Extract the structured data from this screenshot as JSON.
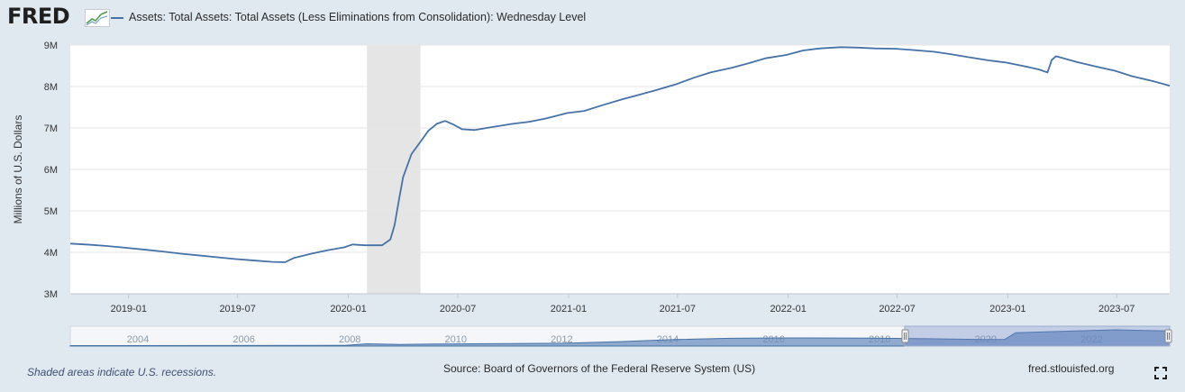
{
  "header": {
    "logo_text": "FRED",
    "series_title": "Assets: Total Assets: Total Assets (Less Eliminations from Consolidation): Wednesday Level"
  },
  "colors": {
    "background": "#e1e9f0",
    "plot_background": "#ffffff",
    "series_line": "#4572a7",
    "recession_shade": "#e5e5e5",
    "navigator_fill": "#6f8fbf",
    "logo_dark": "#1f1f1f",
    "logo_accent": "#4f9d4f"
  },
  "chart_data": {
    "type": "line",
    "title": "",
    "xlabel": "",
    "ylabel": "Millions of U.S. Dollars",
    "ylim": [
      3000000,
      9000000
    ],
    "yticks": [
      {
        "value": 3000000,
        "label": "3M"
      },
      {
        "value": 4000000,
        "label": "4M"
      },
      {
        "value": 5000000,
        "label": "5M"
      },
      {
        "value": 6000000,
        "label": "6M"
      },
      {
        "value": 7000000,
        "label": "7M"
      },
      {
        "value": 8000000,
        "label": "8M"
      },
      {
        "value": 9000000,
        "label": "9M"
      }
    ],
    "xlim": [
      "2018-09-26",
      "2023-09-27"
    ],
    "xticks": [
      "2019-01",
      "2019-07",
      "2020-01",
      "2020-07",
      "2021-01",
      "2021-07",
      "2022-01",
      "2022-07",
      "2023-01",
      "2023-07"
    ],
    "grid": true,
    "legend": "top-left",
    "recessions": [
      {
        "start": "2020-02-01",
        "end": "2020-04-30"
      }
    ],
    "series": [
      {
        "name": "Assets: Total Assets: Total Assets (Less Eliminations from Consolidation): Wednesday Level",
        "color": "#4572a7",
        "points": [
          [
            "2018-09-26",
            4210000
          ],
          [
            "2018-10-31",
            4180000
          ],
          [
            "2018-11-28",
            4150000
          ],
          [
            "2018-12-26",
            4110000
          ],
          [
            "2019-01-30",
            4060000
          ],
          [
            "2019-02-27",
            4020000
          ],
          [
            "2019-03-27",
            3970000
          ],
          [
            "2019-04-24",
            3930000
          ],
          [
            "2019-05-29",
            3880000
          ],
          [
            "2019-06-26",
            3840000
          ],
          [
            "2019-07-31",
            3800000
          ],
          [
            "2019-08-28",
            3770000
          ],
          [
            "2019-09-18",
            3760000
          ],
          [
            "2019-10-02",
            3860000
          ],
          [
            "2019-10-30",
            3960000
          ],
          [
            "2019-11-27",
            4050000
          ],
          [
            "2019-12-25",
            4120000
          ],
          [
            "2020-01-08",
            4190000
          ],
          [
            "2020-01-29",
            4170000
          ],
          [
            "2020-02-26",
            4170000
          ],
          [
            "2020-03-11",
            4310000
          ],
          [
            "2020-03-18",
            4660000
          ],
          [
            "2020-03-25",
            5250000
          ],
          [
            "2020-04-01",
            5810000
          ],
          [
            "2020-04-15",
            6370000
          ],
          [
            "2020-04-29",
            6650000
          ],
          [
            "2020-05-13",
            6930000
          ],
          [
            "2020-05-27",
            7100000
          ],
          [
            "2020-06-10",
            7170000
          ],
          [
            "2020-06-24",
            7080000
          ],
          [
            "2020-07-08",
            6970000
          ],
          [
            "2020-07-29",
            6950000
          ],
          [
            "2020-08-26",
            7020000
          ],
          [
            "2020-09-30",
            7100000
          ],
          [
            "2020-10-28",
            7150000
          ],
          [
            "2020-11-25",
            7230000
          ],
          [
            "2020-12-30",
            7360000
          ],
          [
            "2021-01-27",
            7410000
          ],
          [
            "2021-02-24",
            7540000
          ],
          [
            "2021-03-31",
            7690000
          ],
          [
            "2021-04-28",
            7800000
          ],
          [
            "2021-05-26",
            7910000
          ],
          [
            "2021-06-30",
            8060000
          ],
          [
            "2021-07-28",
            8210000
          ],
          [
            "2021-08-25",
            8340000
          ],
          [
            "2021-09-29",
            8450000
          ],
          [
            "2021-10-27",
            8560000
          ],
          [
            "2021-11-24",
            8680000
          ],
          [
            "2021-12-29",
            8760000
          ],
          [
            "2022-01-26",
            8870000
          ],
          [
            "2022-02-23",
            8920000
          ],
          [
            "2022-03-30",
            8950000
          ],
          [
            "2022-04-27",
            8940000
          ],
          [
            "2022-05-25",
            8920000
          ],
          [
            "2022-06-29",
            8910000
          ],
          [
            "2022-07-27",
            8880000
          ],
          [
            "2022-08-31",
            8840000
          ],
          [
            "2022-09-28",
            8780000
          ],
          [
            "2022-10-26",
            8710000
          ],
          [
            "2022-11-30",
            8630000
          ],
          [
            "2022-12-28",
            8580000
          ],
          [
            "2023-01-25",
            8500000
          ],
          [
            "2023-02-22",
            8410000
          ],
          [
            "2023-03-08",
            8340000
          ],
          [
            "2023-03-15",
            8640000
          ],
          [
            "2023-03-22",
            8730000
          ],
          [
            "2023-04-26",
            8590000
          ],
          [
            "2023-05-31",
            8470000
          ],
          [
            "2023-06-28",
            8380000
          ],
          [
            "2023-07-26",
            8250000
          ],
          [
            "2023-08-30",
            8130000
          ],
          [
            "2023-09-27",
            8020000
          ]
        ]
      }
    ]
  },
  "navigator": {
    "year_labels": [
      "2004",
      "2006",
      "2008",
      "2010",
      "2012",
      "2014",
      "2016",
      "2018",
      "2020",
      "2022"
    ],
    "history_points": [
      [
        0.0,
        0.03
      ],
      [
        0.25,
        0.04
      ],
      [
        0.27,
        0.14
      ],
      [
        0.3,
        0.1
      ],
      [
        0.33,
        0.13
      ],
      [
        0.4,
        0.15
      ],
      [
        0.45,
        0.17
      ],
      [
        0.5,
        0.27
      ],
      [
        0.55,
        0.4
      ],
      [
        0.6,
        0.48
      ],
      [
        0.65,
        0.5
      ],
      [
        0.73,
        0.49
      ],
      [
        0.78,
        0.45
      ],
      [
        0.83,
        0.4
      ],
      [
        0.85,
        0.41
      ],
      [
        0.86,
        0.82
      ],
      [
        0.9,
        0.9
      ],
      [
        0.95,
        1.0
      ],
      [
        1.0,
        0.93
      ]
    ],
    "selection_start_fraction": 0.759
  },
  "footer": {
    "recession_note": "Shaded areas indicate U.S. recessions.",
    "source": "Source: Board of Governors of the Federal Reserve System (US)",
    "site": "fred.stlouisfed.org"
  }
}
